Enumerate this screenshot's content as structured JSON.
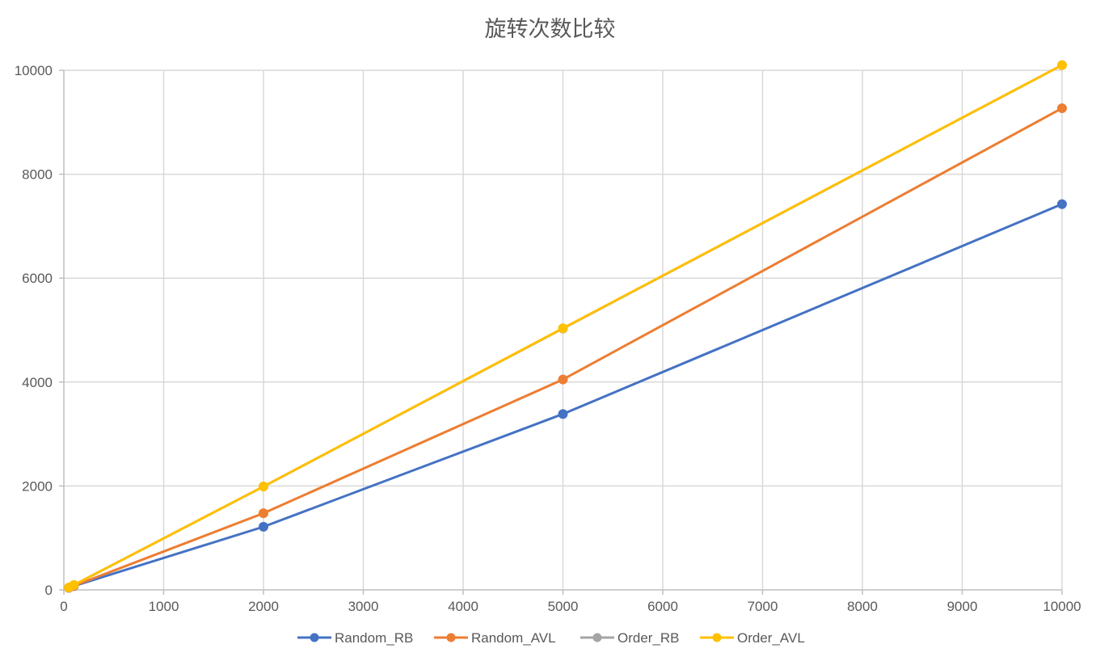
{
  "chart_data": {
    "type": "line",
    "title": "旋转次数比较",
    "xlabel": "",
    "ylabel": "",
    "xlim": [
      0,
      10000
    ],
    "ylim": [
      0,
      10000
    ],
    "x_ticks": [
      0,
      1000,
      2000,
      3000,
      4000,
      5000,
      6000,
      7000,
      8000,
      9000,
      10000
    ],
    "y_ticks": [
      0,
      2000,
      4000,
      6000,
      8000,
      10000
    ],
    "grid": true,
    "legend_position": "bottom",
    "series": [
      {
        "name": "Random_RB",
        "color": "#4472C4",
        "points": [
          [
            50,
            38
          ],
          [
            100,
            74
          ],
          [
            2000,
            1215
          ],
          [
            5000,
            3385
          ],
          [
            10000,
            7425
          ]
        ]
      },
      {
        "name": "Random_AVL",
        "color": "#ED7D31",
        "points": [
          [
            50,
            40
          ],
          [
            100,
            78
          ],
          [
            2000,
            1475
          ],
          [
            5000,
            4050
          ],
          [
            10000,
            9270
          ]
        ]
      },
      {
        "name": "Order_RB",
        "color": "#A5A5A5",
        "points": [
          [
            50,
            45
          ],
          [
            100,
            94
          ],
          [
            2000,
            1990
          ],
          [
            5000,
            5030
          ],
          [
            10000,
            10100
          ]
        ]
      },
      {
        "name": "Order_AVL",
        "color": "#FFC000",
        "points": [
          [
            50,
            45
          ],
          [
            100,
            94
          ],
          [
            2000,
            1990
          ],
          [
            5000,
            5035
          ],
          [
            10000,
            10100
          ]
        ]
      }
    ]
  }
}
